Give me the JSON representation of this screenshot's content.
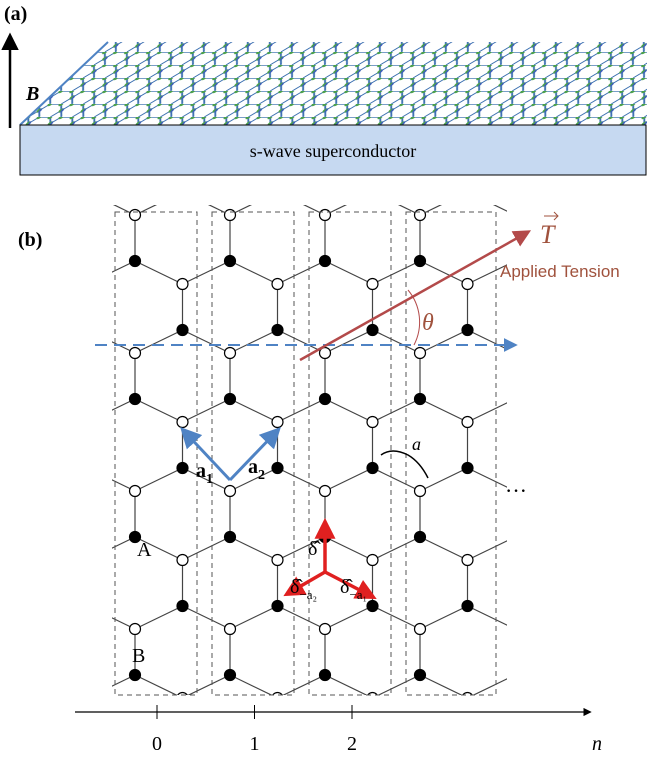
{
  "panel_a": {
    "label": "(a)",
    "field_label": "B",
    "substrate_label": "s-wave superconductor"
  },
  "panel_b": {
    "label": "(b)",
    "tension_symbol": "T",
    "tension_caption": "Applied Tension",
    "angle_label": "θ",
    "vectors": [
      {
        "symbol": "a",
        "subscript": "1"
      },
      {
        "symbol": "a",
        "subscript": "2"
      }
    ],
    "lattice_constant": "a",
    "deltas": [
      {
        "symbol": "δ̂",
        "subscript": ""
      },
      {
        "symbol": "δ̂",
        "subscript": "−a₂"
      },
      {
        "symbol": "δ̂",
        "subscript": "−a₁"
      }
    ],
    "sublattice_labels": [
      "A",
      "B"
    ],
    "ellipsis": "···",
    "axis": {
      "ticks": [
        "0",
        "1",
        "2"
      ],
      "label": "n"
    }
  }
}
